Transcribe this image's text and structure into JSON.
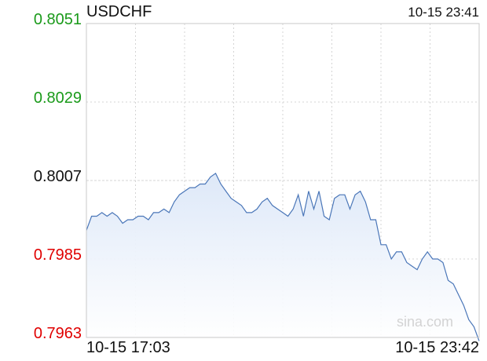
{
  "header": {
    "symbol": "USDCHF",
    "timestamp": "10-15 23:41"
  },
  "watermark": "sina.com",
  "colors": {
    "up": "#1a9a1a",
    "down": "#e00000",
    "neutral": "#111111",
    "line": "#4a76b8",
    "fill_top": "#dde8f8",
    "grid": "#d4d4d4"
  },
  "chart_data": {
    "type": "area",
    "title": "USDCHF",
    "xlabel": "",
    "ylabel": "",
    "x_tick_labels": [
      "10-15 17:03",
      "10-15 23:42"
    ],
    "y_ticks": [
      "0.8051",
      "0.8029",
      "0.8007",
      "0.7985",
      "0.7963"
    ],
    "y_tick_status": [
      "up",
      "up",
      "neutral",
      "down",
      "down"
    ],
    "ylim": [
      0.7963,
      0.8051
    ],
    "reference_price": 0.8007,
    "grid": true,
    "series": [
      {
        "values": [
          0.7993,
          0.7997,
          0.7997,
          0.7998,
          0.7997,
          0.7998,
          0.7997,
          0.7995,
          0.7996,
          0.7996,
          0.7997,
          0.7997,
          0.7996,
          0.7998,
          0.7998,
          0.7999,
          0.7998,
          0.8001,
          0.8003,
          0.8004,
          0.8005,
          0.8005,
          0.8006,
          0.8006,
          0.8008,
          0.8009,
          0.8006,
          0.8004,
          0.8002,
          0.8001,
          0.8,
          0.7998,
          0.7998,
          0.7999,
          0.8001,
          0.8002,
          0.8,
          0.7999,
          0.7998,
          0.7997,
          0.7999,
          0.8003,
          0.7997,
          0.8004,
          0.7999,
          0.8004,
          0.7997,
          0.7996,
          0.8002,
          0.8003,
          0.8003,
          0.7999,
          0.8003,
          0.8004,
          0.8001,
          0.7996,
          0.7996,
          0.7989,
          0.7989,
          0.7985,
          0.7987,
          0.7987,
          0.7984,
          0.7983,
          0.7982,
          0.7985,
          0.7987,
          0.7985,
          0.7985,
          0.7984,
          0.7979,
          0.7978,
          0.7975,
          0.7972,
          0.7968,
          0.7966,
          0.7962
        ]
      }
    ]
  }
}
